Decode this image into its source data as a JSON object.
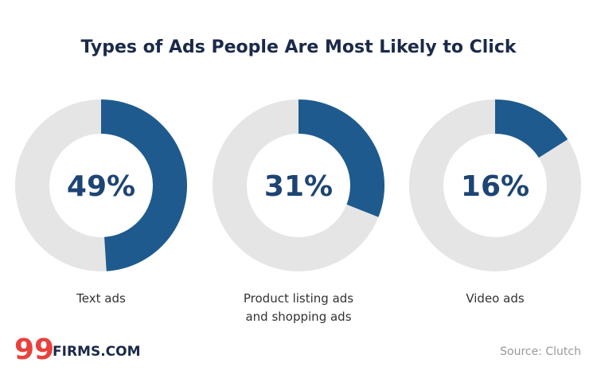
{
  "chart_data": {
    "type": "donut",
    "title": "Types of Ads People Are Most Likely to Click",
    "categories": [
      "Text ads",
      "Product listing ads and shopping ads",
      "Video ads"
    ],
    "values": [
      49,
      31,
      16
    ],
    "value_labels": [
      "49%",
      "31%",
      "16%"
    ],
    "color": "#1e5a8e",
    "track_color": "#e5e5e5"
  },
  "logo": {
    "mark": "99",
    "text": "FIRMS.COM"
  },
  "source": "Source: Clutch"
}
